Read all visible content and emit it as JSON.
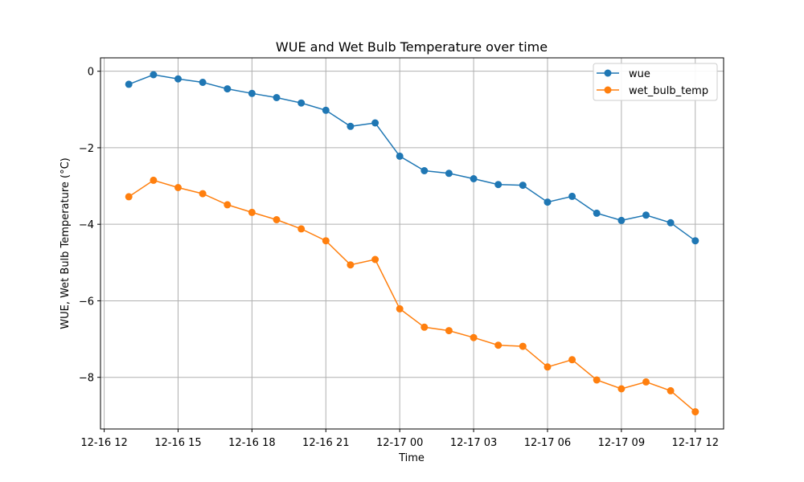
{
  "chart_data": {
    "type": "line",
    "title": "WUE and Wet Bulb Temperature over time",
    "xlabel": "Time",
    "ylabel": "WUE, Wet Bulb Temperature (°C)",
    "x": [
      "12-16 13:00",
      "12-16 14:00",
      "12-16 15:00",
      "12-16 16:00",
      "12-16 17:00",
      "12-16 18:00",
      "12-16 19:00",
      "12-16 20:00",
      "12-16 21:00",
      "12-16 22:00",
      "12-16 23:00",
      "12-17 00:00",
      "12-17 01:00",
      "12-17 02:00",
      "12-17 03:00",
      "12-17 04:00",
      "12-17 05:00",
      "12-17 06:00",
      "12-17 07:00",
      "12-17 08:00",
      "12-17 09:00",
      "12-17 10:00",
      "12-17 11:00",
      "12-17 12:00"
    ],
    "x_tick_labels": [
      "12-16 12",
      "12-16 15",
      "12-16 18",
      "12-16 21",
      "12-17 00",
      "12-17 03",
      "12-17 06",
      "12-17 09",
      "12-17 12"
    ],
    "y_ticks": [
      0,
      -2,
      -4,
      -6,
      -8
    ],
    "ylim": [
      -9.35,
      0.35
    ],
    "grid": true,
    "legend_position": "top-right",
    "series": [
      {
        "name": "wue",
        "color": "#1f77b4",
        "values": [
          -0.34,
          -0.09,
          -0.2,
          -0.29,
          -0.46,
          -0.58,
          -0.69,
          -0.83,
          -1.02,
          -1.44,
          -1.35,
          -2.22,
          -2.6,
          -2.67,
          -2.81,
          -2.96,
          -2.98,
          -3.42,
          -3.27,
          -3.71,
          -3.9,
          -3.76,
          -3.96,
          -4.43
        ]
      },
      {
        "name": "wet_bulb_temp",
        "color": "#ff7f0e",
        "values": [
          -3.28,
          -2.85,
          -3.04,
          -3.2,
          -3.49,
          -3.69,
          -3.88,
          -4.12,
          -4.43,
          -5.06,
          -4.92,
          -6.21,
          -6.69,
          -6.78,
          -6.96,
          -7.16,
          -7.19,
          -7.73,
          -7.54,
          -8.07,
          -8.3,
          -8.12,
          -8.35,
          -8.9
        ]
      }
    ]
  }
}
